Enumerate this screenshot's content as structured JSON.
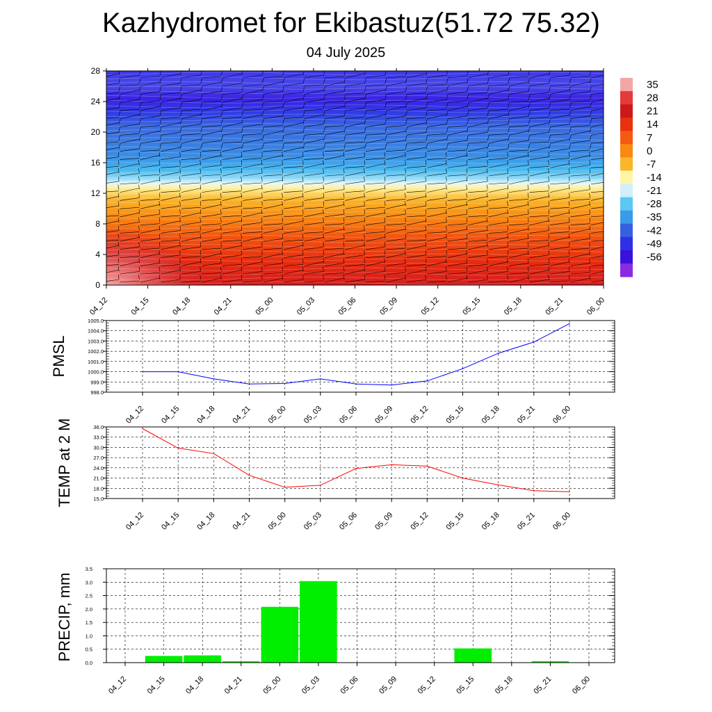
{
  "header": {
    "title": "Kazhydromet for Ekibastuz(51.72 75.32)",
    "subtitle": "04 July 2025"
  },
  "chart_data": [
    {
      "id": "cross-section",
      "type": "heatmap",
      "title": "",
      "x_tick_labels": [
        "04_12",
        "04_15",
        "04_18",
        "04_21",
        "05_00",
        "05_03",
        "05_06",
        "05_09",
        "05_12",
        "05_15",
        "05_18",
        "05_21",
        "06_00"
      ],
      "y_ticks": [
        0,
        4,
        8,
        12,
        16,
        20,
        24,
        28
      ],
      "ylim": [
        0,
        28
      ],
      "colorbar_labels": [
        "35",
        "28",
        "21",
        "14",
        "7",
        "0",
        "-7",
        "-14",
        "-21",
        "-28",
        "-35",
        "-42",
        "-49",
        "-56"
      ],
      "colorbar_colors": [
        "#f4a6a6",
        "#e33b3b",
        "#cc1a1a",
        "#e8320e",
        "#f45a10",
        "#f88a12",
        "#fbb62a",
        "#fff5a8",
        "#d2eefa",
        "#5ac8f2",
        "#3a9bea",
        "#3660e0",
        "#2f30e6",
        "#3a10dc",
        "#8a2be2"
      ],
      "surface_temps_at_time": [
        40,
        34,
        30,
        27,
        24,
        24,
        25,
        25,
        25,
        24,
        23,
        23,
        22
      ],
      "wind_barbs": "shown"
    },
    {
      "id": "pmsl",
      "type": "line",
      "ylabel": "PMSL",
      "x_tick_labels": [
        "04_12",
        "04_15",
        "04_18",
        "04_21",
        "05_00",
        "05_03",
        "05_06",
        "05_09",
        "05_12",
        "05_15",
        "05_18",
        "05_21",
        "06_00"
      ],
      "y_tick_labels": [
        "1005.0",
        "1004.0",
        "1003.0",
        "1002.0",
        "1001.0",
        "1000.0",
        "999.0",
        "998.0"
      ],
      "ylim": [
        998.0,
        1005.0
      ],
      "values": [
        1000.0,
        1000.0,
        999.3,
        998.8,
        998.85,
        999.3,
        998.8,
        998.7,
        999.1,
        1000.3,
        1001.8,
        1002.9,
        1004.7
      ],
      "color": "#0000ff",
      "grid": "dashed"
    },
    {
      "id": "temp2m",
      "type": "line",
      "ylabel": "TEMP at 2 M",
      "x_tick_labels": [
        "04_12",
        "04_15",
        "04_18",
        "04_21",
        "05_00",
        "05_03",
        "05_06",
        "05_09",
        "05_12",
        "05_15",
        "05_18",
        "05_21",
        "06_00"
      ],
      "y_tick_labels": [
        "36.0",
        "33.0",
        "30.0",
        "27.0",
        "24.0",
        "21.0",
        "18.0",
        "15.0"
      ],
      "ylim": [
        15.0,
        36.0
      ],
      "values": [
        35.5,
        29.8,
        28.2,
        21.8,
        18.3,
        18.9,
        23.8,
        24.9,
        24.5,
        21.0,
        19.0,
        17.3,
        17.0
      ],
      "color": "#ff0000",
      "grid": "dashed"
    },
    {
      "id": "precip",
      "type": "bar",
      "ylabel": "PRECIP, mm",
      "categories": [
        "04_12",
        "04_15",
        "04_18",
        "04_21",
        "05_00",
        "05_03",
        "05_06",
        "05_09",
        "05_12",
        "05_15",
        "05_18",
        "05_21",
        "06_00"
      ],
      "y_tick_labels": [
        "3.5",
        "3.0",
        "2.5",
        "2.0",
        "1.5",
        "1.0",
        "0.5",
        "0.0"
      ],
      "ylim": [
        0.0,
        3.5
      ],
      "values": [
        0.0,
        0.25,
        0.27,
        0.05,
        2.08,
        3.04,
        0.0,
        0.0,
        0.0,
        0.53,
        0.0,
        0.05,
        0.0
      ],
      "color": "#00ee00",
      "grid": "dashed"
    }
  ]
}
